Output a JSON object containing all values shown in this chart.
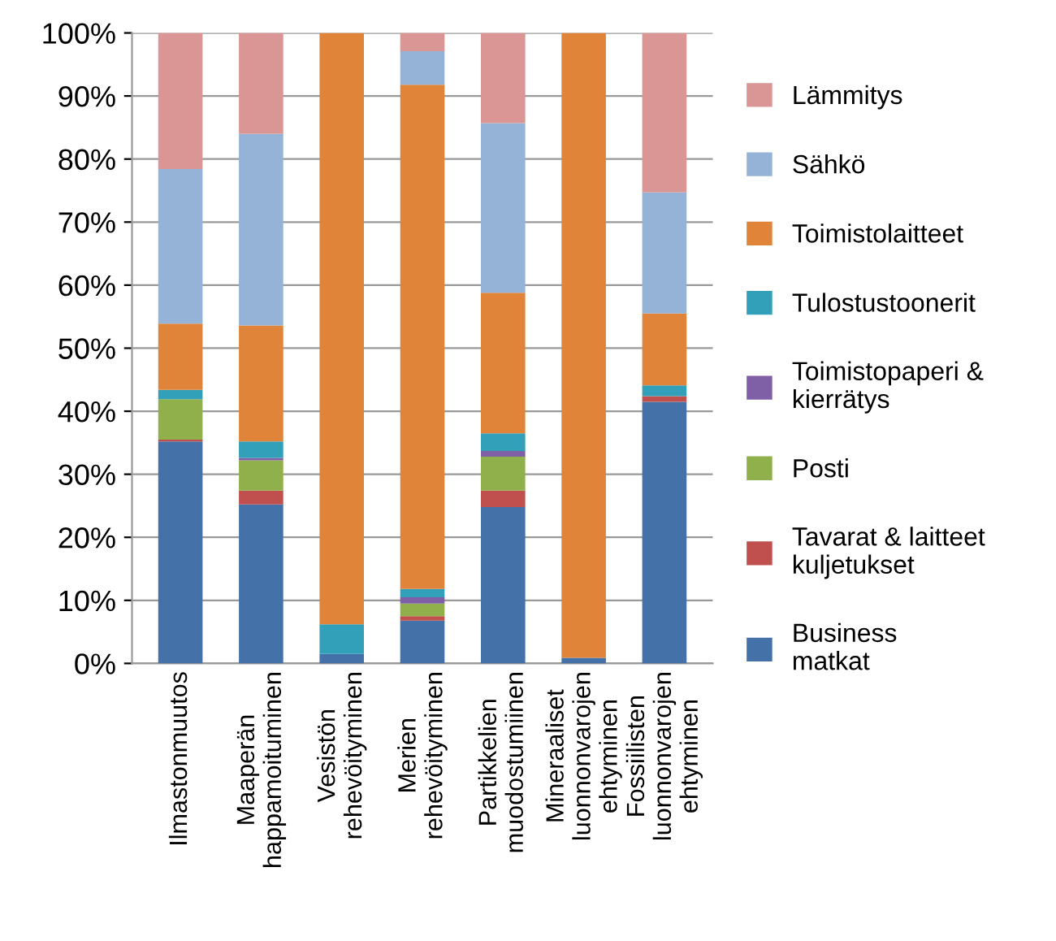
{
  "chart_data": {
    "type": "bar",
    "stacked": true,
    "categories": [
      "Ilmastonmuutos",
      "Maaperän\nhappamoituminen",
      "Vesistön\nrehevöityminen",
      "Merien\nrehevöityminen",
      "Partikkelien\nmuodostumiinen",
      "Mineraaliset\nluonnonvarojen\nehtyminen",
      "Fossiilisten\nluonnonvarojen\nehtyminen"
    ],
    "series": [
      {
        "name": "Business\nmatkat",
        "color": "#4472a8",
        "values": [
          35.2,
          25.2,
          1.5,
          6.8,
          24.8,
          0.9,
          41.5
        ]
      },
      {
        "name": "Tavarat & laitteet\nkuljetukset",
        "color": "#c0504d",
        "values": [
          0.3,
          2.2,
          0,
          0.7,
          2.6,
          0,
          0.9
        ]
      },
      {
        "name": "Posti",
        "color": "#8fb04a",
        "values": [
          6.4,
          4.8,
          0,
          2.0,
          5.4,
          0,
          0
        ]
      },
      {
        "name": "Toimistopaperi &\nkierrätys",
        "color": "#7f5fa6",
        "values": [
          0,
          0.4,
          0,
          1.0,
          0.9,
          0,
          0
        ]
      },
      {
        "name": "Tulostustoonerit",
        "color": "#31a0b8",
        "values": [
          1.5,
          2.6,
          4.7,
          1.3,
          2.8,
          0,
          1.7
        ]
      },
      {
        "name": "Toimistolaitteet",
        "color": "#e0843a",
        "values": [
          10.5,
          18.4,
          93.8,
          80.0,
          22.3,
          99.1,
          11.4
        ]
      },
      {
        "name": "Sähkö",
        "color": "#95b3d7",
        "values": [
          24.5,
          30.4,
          0,
          5.3,
          26.9,
          0,
          19.2
        ]
      },
      {
        "name": "Lämmitys",
        "color": "#d99694",
        "values": [
          21.6,
          16.0,
          0,
          2.9,
          14.3,
          0,
          25.3
        ]
      }
    ],
    "ylim": [
      0,
      100
    ],
    "yticks": [
      {
        "value": 0,
        "label": "0%"
      },
      {
        "value": 10,
        "label": "10%"
      },
      {
        "value": 20,
        "label": "20%"
      },
      {
        "value": 30,
        "label": "30%"
      },
      {
        "value": 40,
        "label": "40%"
      },
      {
        "value": 50,
        "label": "50%"
      },
      {
        "value": 60,
        "label": "60%"
      },
      {
        "value": 70,
        "label": "70%"
      },
      {
        "value": 80,
        "label": "80%"
      },
      {
        "value": 90,
        "label": "90%"
      },
      {
        "value": 100,
        "label": "100%"
      }
    ],
    "grid": "y",
    "legend": "right"
  }
}
